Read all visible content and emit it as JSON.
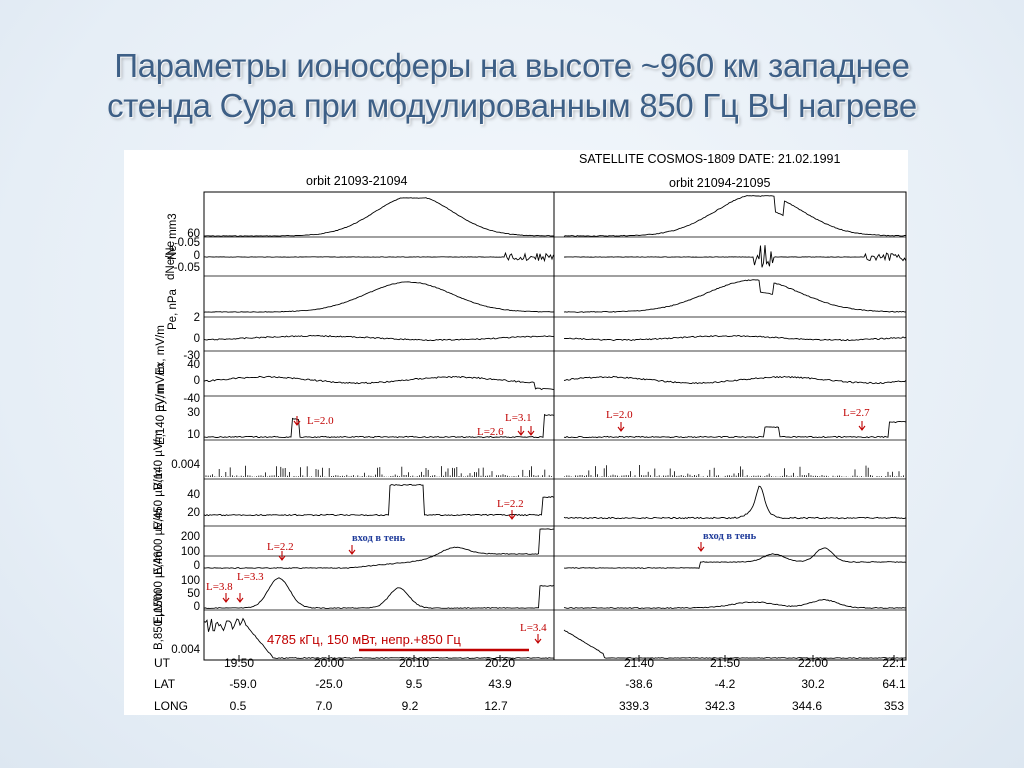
{
  "slide_title_line1": "Параметры ионосферы на высоте ~960 км западнее",
  "slide_title_line2": "стенда Сура при модулированным 850 Гц ВЧ нагреве",
  "chart_data": {
    "type": "line",
    "satellite_label": "SATELLITE  COSMOS-1809 DATE: 21.02.1991",
    "left_orbit": "orbit  21093-21094",
    "right_orbit": "orbit  21094-21095",
    "panels": [
      {
        "ylabel": "Ne, mm3",
        "ticks": [
          "60"
        ]
      },
      {
        "ylabel": "dNe/Ne",
        "ticks": [
          "0.05",
          "0",
          "-0.05"
        ]
      },
      {
        "ylabel": "Pe, nPa",
        "ticks": [
          "2"
        ]
      },
      {
        "ylabel": "Ex, mV/m",
        "ticks": [
          "0",
          "-30"
        ]
      },
      {
        "ylabel": "Ey, mV/m",
        "ticks": [
          "40",
          "0",
          "-40"
        ]
      },
      {
        "ylabel": "E,140 µV/m",
        "ticks": [
          "30",
          "10"
        ]
      },
      {
        "ylabel": "B,140 µV/m",
        "ticks": [
          "0.004"
        ]
      },
      {
        "ylabel": "E,450 µV/m",
        "ticks": [
          "40",
          "20"
        ]
      },
      {
        "ylabel": "E,4600 µV/m",
        "ticks": [
          "200",
          "100",
          "0"
        ]
      },
      {
        "ylabel": "E,15000 µV/m",
        "ticks": [
          "100",
          "50",
          "0"
        ]
      },
      {
        "ylabel": "B,850 µV/m",
        "ticks": [
          "0.004"
        ]
      }
    ],
    "rows": {
      "ut": "UT",
      "lat": "LAT",
      "long": "LONG"
    },
    "left_axis": {
      "ut": [
        "19:50",
        "20:00",
        "20:10",
        "20:20"
      ],
      "lat": [
        "-59.0",
        "-25.0",
        "9.5",
        "43.9"
      ],
      "long": [
        "0.5",
        "7.0",
        "9.2",
        "12.7"
      ]
    },
    "right_axis": {
      "ut": [
        "21:40",
        "21:50",
        "22:00",
        "22:1"
      ],
      "lat": [
        "-38.6",
        "-4.2",
        "30.2",
        "64.1"
      ],
      "long": [
        "339.3",
        "342.3",
        "344.6",
        "353"
      ]
    },
    "annotations": {
      "l20_left": "L=2.0",
      "l31": "L=3.1",
      "l26": "L=2.6",
      "l20_right": "L=2.0",
      "l27": "L=2.7",
      "l22_e450": "L=2.2",
      "shadow_left": "вход в тень",
      "shadow_right": "вход в тень",
      "l22_e4600": "L=2.2",
      "l38": "L=3.8",
      "l33": "L=3.3",
      "l34": "L=3.4",
      "heating_note": "4785 кГц, 150 мВт, непр.+850 Гц"
    },
    "colors": {
      "annotation": "#c00000",
      "shadow_note": "#1f3b9a",
      "title": "#3d5f86"
    }
  }
}
